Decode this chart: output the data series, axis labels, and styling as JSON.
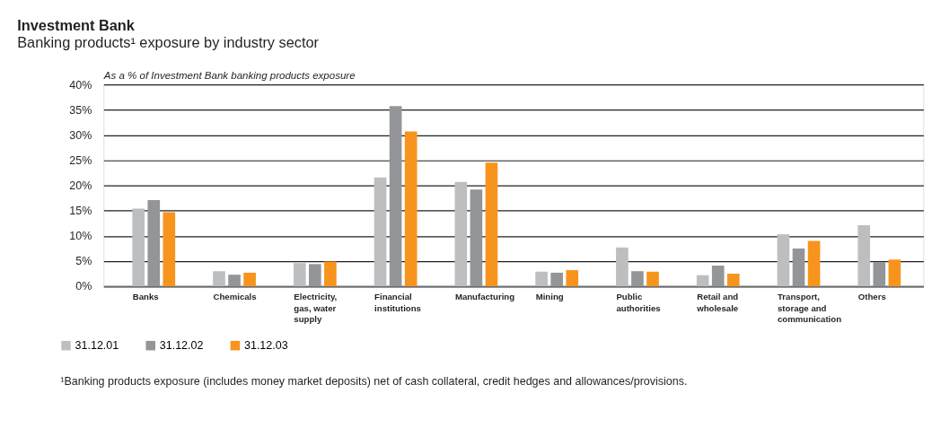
{
  "chart_data": {
    "type": "bar",
    "title": "Investment Bank",
    "subtitle": "Banking products¹ exposure by industry sector",
    "ylabel": "As a % of Investment Bank banking products exposure",
    "categories": [
      "Banks",
      "Chemicals",
      "Electricity, gas, water supply",
      "Financial institutions",
      "Manufacturing",
      "Mining",
      "Public authorities",
      "Retail and wholesale",
      "Transport, storage and communication",
      "Others"
    ],
    "series": [
      {
        "name": "31.12.01",
        "color": "#bdbec0",
        "values": [
          15.4,
          3.0,
          4.6,
          21.6,
          20.7,
          2.9,
          7.7,
          2.2,
          10.3,
          12.1
        ]
      },
      {
        "name": "31.12.02",
        "color": "#939598",
        "values": [
          17.1,
          2.3,
          4.4,
          35.7,
          19.2,
          2.7,
          3.0,
          4.1,
          7.5,
          4.8
        ]
      },
      {
        "name": "31.12.03",
        "color": "#f7941d",
        "values": [
          14.7,
          2.7,
          4.9,
          30.7,
          24.5,
          3.2,
          2.9,
          2.5,
          9.0,
          5.3
        ]
      }
    ],
    "ylim": [
      0,
      40
    ],
    "yticks": [
      {
        "value": 0,
        "label": "0%"
      },
      {
        "value": 5,
        "label": "5%"
      },
      {
        "value": 10,
        "label": "10%"
      },
      {
        "value": 15,
        "label": "15%"
      },
      {
        "value": 20,
        "label": "20%"
      },
      {
        "value": 25,
        "label": "25%"
      },
      {
        "value": 30,
        "label": "30%"
      },
      {
        "value": 35,
        "label": "35%"
      },
      {
        "value": 40,
        "label": "40%"
      }
    ],
    "grid": "y",
    "legend": "bottom left",
    "annotations": [
      "¹Banking products exposure (includes money market deposits) net of cash collateral, credit hedges and allowances/provisions."
    ]
  }
}
